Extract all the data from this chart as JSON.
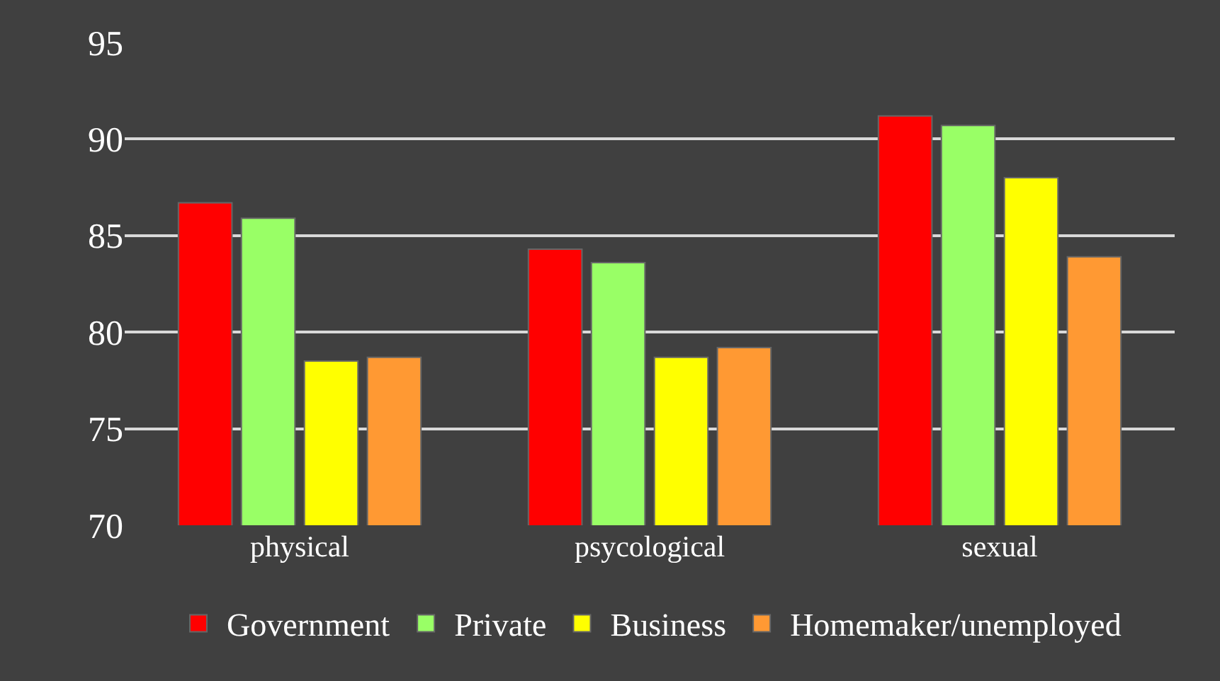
{
  "chart_data": {
    "type": "bar",
    "categories": [
      "physical",
      "psycological",
      "sexual"
    ],
    "series": [
      {
        "name": "Government",
        "color": "#ff0000",
        "values": [
          86.7,
          84.3,
          91.2
        ]
      },
      {
        "name": "Private",
        "color": "#99ff66",
        "values": [
          85.9,
          83.6,
          90.7
        ]
      },
      {
        "name": "Business",
        "color": "#ffff00",
        "values": [
          78.5,
          78.7,
          88.0
        ]
      },
      {
        "name": "Homemaker/unemployed",
        "color": "#ff9933",
        "values": [
          78.7,
          79.2,
          83.9
        ]
      }
    ],
    "ylim": [
      70,
      95
    ],
    "yticks": [
      70,
      75,
      80,
      85,
      90,
      95
    ],
    "grid": "y",
    "legend": "bottom"
  }
}
